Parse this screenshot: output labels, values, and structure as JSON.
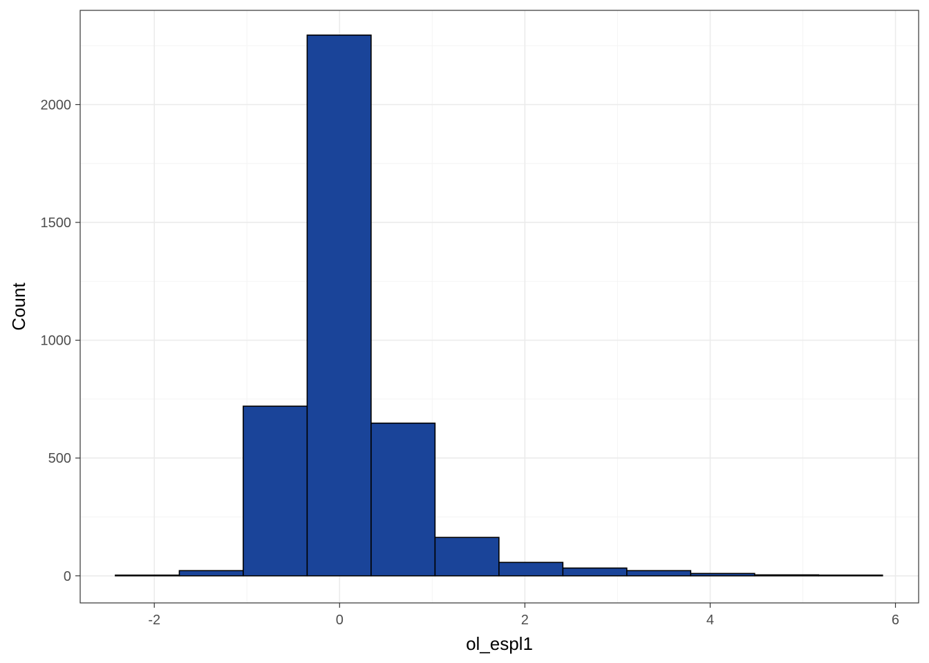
{
  "chart_data": {
    "type": "bar",
    "subtype": "histogram",
    "xlabel": "ol_espl1",
    "ylabel": "Count",
    "xlim": [
      -2.8,
      6.25
    ],
    "ylim": [
      -115,
      2400
    ],
    "x_ticks": [
      -2,
      0,
      2,
      4,
      6
    ],
    "x_tick_labels": [
      "-2",
      "0",
      "2",
      "4",
      "6"
    ],
    "y_ticks": [
      0,
      500,
      1000,
      1500,
      2000
    ],
    "y_tick_labels": [
      "0",
      "500",
      "1000",
      "1500",
      "2000"
    ],
    "bins": [
      {
        "x0": -2.42,
        "x1": -1.73,
        "count": 3
      },
      {
        "x0": -1.73,
        "x1": -1.04,
        "count": 22
      },
      {
        "x0": -1.04,
        "x1": -0.35,
        "count": 720
      },
      {
        "x0": -0.35,
        "x1": 0.34,
        "count": 2295
      },
      {
        "x0": 0.34,
        "x1": 1.03,
        "count": 648
      },
      {
        "x0": 1.03,
        "x1": 1.72,
        "count": 163
      },
      {
        "x0": 1.72,
        "x1": 2.41,
        "count": 57
      },
      {
        "x0": 2.41,
        "x1": 3.1,
        "count": 33
      },
      {
        "x0": 3.1,
        "x1": 3.79,
        "count": 22
      },
      {
        "x0": 3.79,
        "x1": 4.48,
        "count": 10
      },
      {
        "x0": 4.48,
        "x1": 5.17,
        "count": 4
      },
      {
        "x0": 5.17,
        "x1": 5.86,
        "count": 3
      }
    ],
    "grid": true,
    "colors": {
      "bar_fill": "#1a4499",
      "bar_stroke": "#000000",
      "grid_major": "#ebebeb",
      "grid_minor": "#f4f4f4",
      "panel_border": "#333333",
      "tick_label": "#4d4d4d"
    }
  }
}
